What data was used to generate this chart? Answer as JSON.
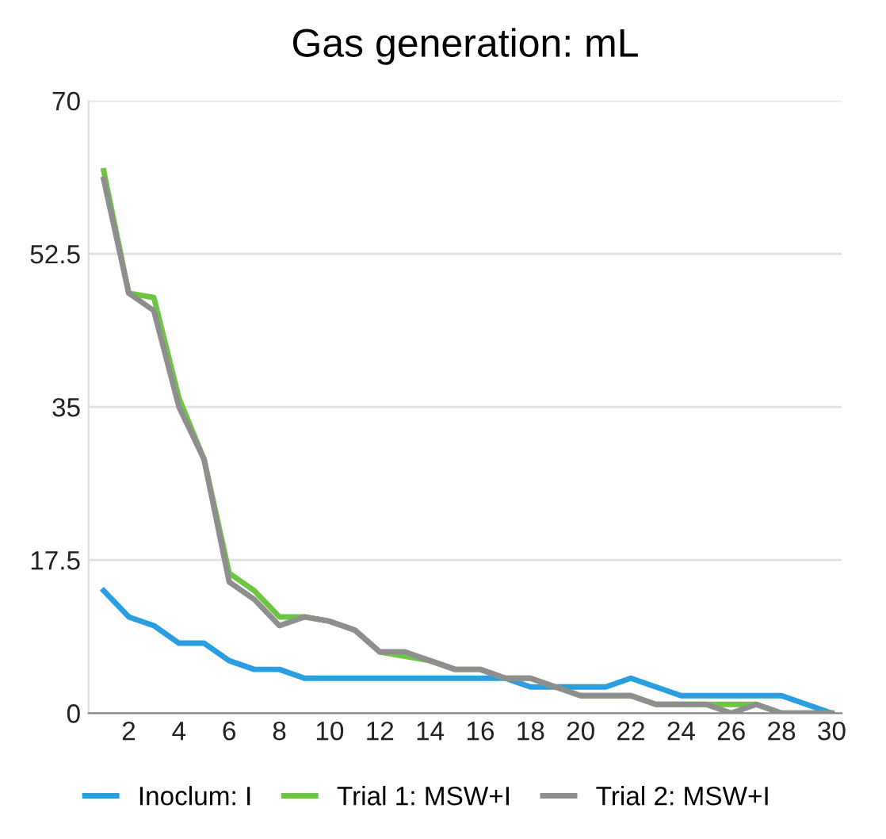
{
  "chart_data": {
    "type": "line",
    "title": "Gas generation: mL",
    "categories": [
      null,
      "2",
      null,
      "4",
      null,
      "6",
      null,
      "8",
      null,
      "10",
      null,
      "12",
      null,
      "14",
      null,
      "16",
      null,
      "18",
      null,
      "20",
      null,
      "22",
      null,
      "24",
      null,
      "26",
      null,
      "28",
      null,
      "30"
    ],
    "series": [
      {
        "name": "Inoclum: I",
        "color": "#2a9ee0",
        "values": [
          14,
          11,
          10,
          8,
          8,
          6,
          5,
          5,
          4,
          4,
          4,
          4,
          4,
          4,
          4,
          4,
          4,
          3,
          3,
          3,
          3,
          4,
          3,
          2,
          2,
          2,
          2,
          2,
          1,
          0
        ]
      },
      {
        "name": "Trial 1: MSW+I",
        "color": "#6cc644",
        "values": [
          62,
          48,
          47.5,
          36,
          29,
          16,
          14,
          11,
          11,
          10.5,
          9.5,
          7,
          6.5,
          6,
          5,
          5,
          4,
          4,
          3,
          2,
          2,
          2,
          1,
          1,
          1,
          1,
          1,
          0,
          0,
          0
        ]
      },
      {
        "name": "Trial 2: MSW+I",
        "color": "#8e8e8e",
        "values": [
          61,
          48,
          46,
          35,
          29,
          15,
          13,
          10,
          11,
          10.5,
          9.5,
          7,
          7,
          6,
          5,
          5,
          4,
          4,
          3,
          2,
          2,
          2,
          1,
          1,
          1,
          0,
          1,
          0,
          0,
          0
        ]
      }
    ],
    "ylim": [
      0,
      70
    ],
    "yticks": [
      0,
      17.5,
      35,
      52.5,
      70
    ],
    "grid": "y",
    "legend": "bottom",
    "marker": "none",
    "line_style": "solid"
  }
}
